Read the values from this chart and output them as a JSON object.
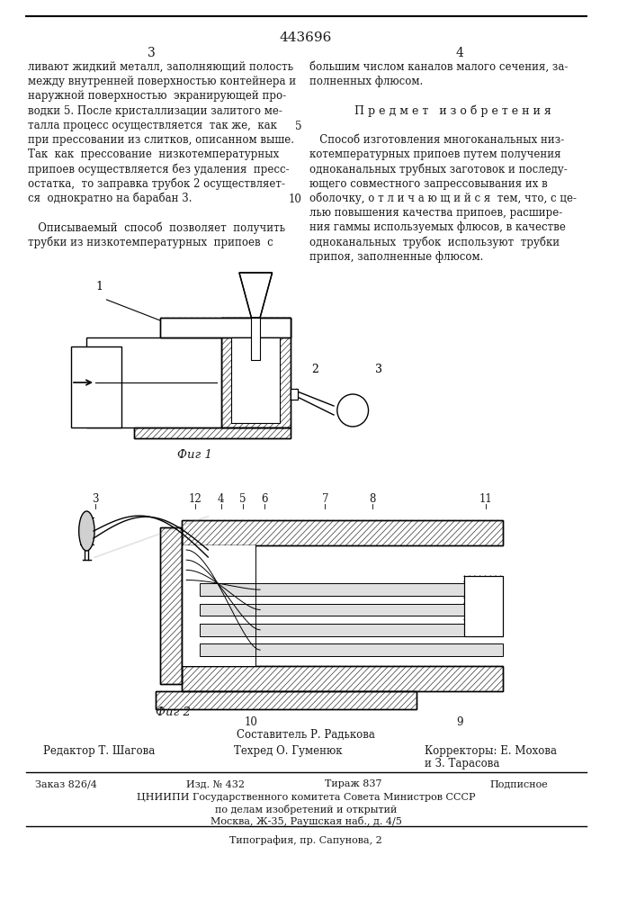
{
  "patent_number": "443696",
  "page_numbers": [
    "3",
    "4"
  ],
  "col_left_text": [
    "ливают жидкий металл, заполняющий полость",
    "между внутренней поверхностью контейнера и",
    "наружной поверхностью  экранирующей про-",
    "водки 5. После кристаллизации залитого ме-",
    "талла процесс осуществляется  так же,  как",
    "при прессовании из слитков, описанном выше.",
    "Так  как  прессование  низкотемпературных",
    "припоев осуществляется без удаления  пресс-",
    "остатка,  то заправка трубок 2 осуществляет-",
    "ся  однократно на барабан 3.",
    "",
    "   Описываемый  способ  позволяет  получить",
    "трубки из низкотемпературных  припоев  с"
  ],
  "col_right_text": [
    "большим числом каналов малого сечения, за-",
    "полненных флюсом.",
    "",
    "Предмет изобретения",
    "",
    "   Способ изготовления многоканальных низ-",
    "котемпературных припоев путем получения",
    "одноканальных трубных заготовок и последу-",
    "ющего совместного запрессовывания их в",
    "оболочку, о т л и ч а ю щ и й с я  тем, что, с це-",
    "лью повышения качества припоев, расшире-",
    "ния гаммы используемых флюсов, в качестве",
    "одноканальных  трубок  используют  трубки",
    "припоя, заполненные флюсом."
  ],
  "line_number_5": "5",
  "line_number_10": "10",
  "fig1_caption": "Фиг 1",
  "fig2_caption": "Фиг 2",
  "footer_composer": "Составитель Р. Радькова",
  "footer_editor": "Редактор Т. Шагова",
  "footer_techred": "Техред О. Гуменюк",
  "footer_correctors": "Корректоры: Е. Мохова",
  "footer_correctors2": "и З. Тарасова",
  "footer_order": "Заказ 826/4",
  "footer_izd": "Изд. № 432",
  "footer_tirazh": "Тираж 837",
  "footer_podpisnoe": "Подписное",
  "footer_cniiipi": "ЦНИИПИ Государственного комитета Совета Министров СССР",
  "footer_podel": "по делам изобретений и открытий",
  "footer_moscow": "Москва, Ж-35, Раушская наб., д. 4/5",
  "footer_tipografia": "Типография, пр. Сапунова, 2",
  "bg_color": "#ffffff",
  "text_color": "#1a1a1a"
}
